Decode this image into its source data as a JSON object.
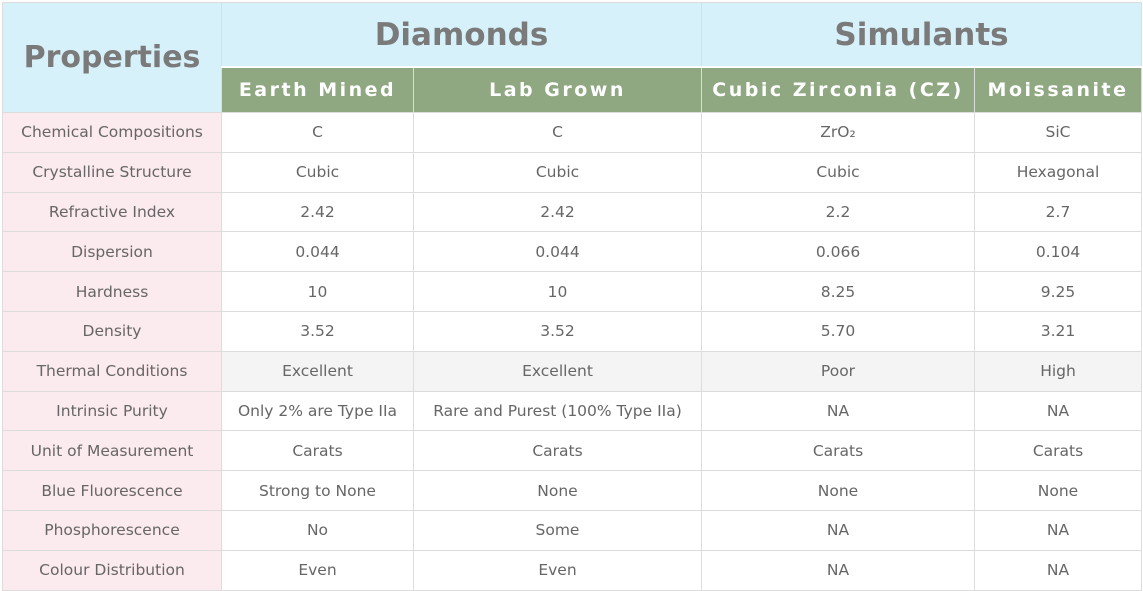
{
  "header": {
    "properties": "Properties",
    "groups": [
      "Diamonds",
      "Simulants"
    ],
    "columns": [
      "Earth Mined",
      "Lab Grown",
      "Cubic Zirconia (CZ)",
      "Moissanite"
    ]
  },
  "table": {
    "rows": [
      [
        "Chemical Compositions",
        "C",
        "C",
        "ZrO₂",
        "SiC"
      ],
      [
        "Crystalline Structure",
        "Cubic",
        "Cubic",
        "Cubic",
        "Hexagonal"
      ],
      [
        "Refractive Index",
        "2.42",
        "2.42",
        "2.2",
        "2.7"
      ],
      [
        "Dispersion",
        "0.044",
        "0.044",
        "0.066",
        "0.104"
      ],
      [
        "Hardness",
        "10",
        "10",
        "8.25",
        "9.25"
      ],
      [
        "Density",
        "3.52",
        "3.52",
        "5.70",
        "3.21"
      ],
      [
        "Thermal Conditions",
        "Excellent",
        "Excellent",
        "Poor",
        "High"
      ],
      [
        "Intrinsic Purity",
        "Only 2% are Type IIa",
        "Rare and Purest (100% Type IIa)",
        "NA",
        "NA"
      ],
      [
        "Unit of Measurement",
        "Carats",
        "Carats",
        "Carats",
        "Carats"
      ],
      [
        "Blue Fluorescence",
        "Strong to None",
        "None",
        "None",
        "None"
      ],
      [
        "Phosphorescence",
        "No",
        "Some",
        "NA",
        "NA"
      ],
      [
        "Colour Distribution",
        "Even",
        "Even",
        "NA",
        "NA"
      ]
    ]
  }
}
